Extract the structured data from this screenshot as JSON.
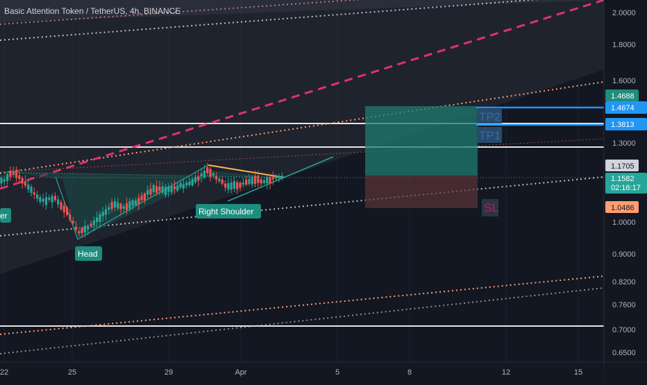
{
  "symbol_title": "Basic Attention Token / TetherUS, 4h, BINANCE",
  "price_axis": {
    "ticks": [
      "2.0000",
      "1.8000",
      "1.6000",
      "1.3000",
      "1.0000",
      "0.9000",
      "0.8200",
      "0.7600",
      "0.7000",
      "0.6500"
    ],
    "badges": {
      "tp2_price": "1.4674",
      "target_price": "1.4688",
      "tp1_price": "1.3813",
      "line_price": "1.1705",
      "last_price": "1.1582",
      "countdown": "02:16:17",
      "sl_price": "1.0486"
    }
  },
  "time_axis": {
    "ticks": [
      "22",
      "25",
      "29",
      "Apr",
      "5",
      "8",
      "12",
      "15"
    ]
  },
  "labels": {
    "left_shoulder_partial": "er",
    "head": "Head",
    "right_shoulder": "Right Shoulder",
    "tp2": "TP2",
    "tp1": "TP1",
    "sl": "SL"
  },
  "colors": {
    "background": "#131722",
    "up": "#26a69a",
    "down": "#ef5350",
    "accent_blue": "#2962ff",
    "tp_line": "#2196f3",
    "pink_dashed": "#e91e63",
    "orange_dotted": "#ff9800",
    "pattern_fill": "#1b3a3a"
  }
}
